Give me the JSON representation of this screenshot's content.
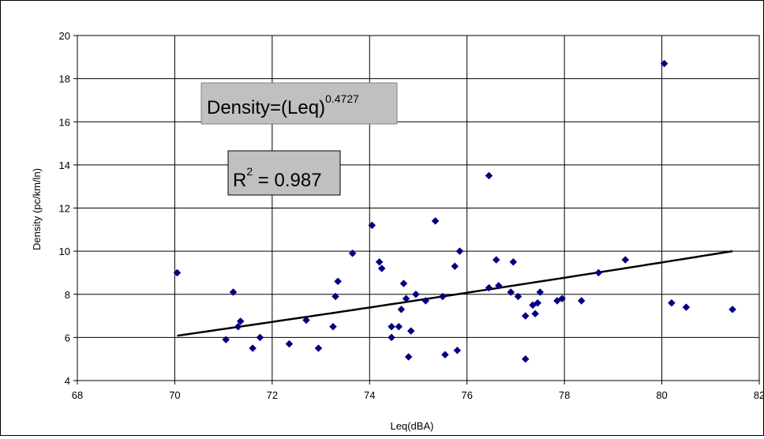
{
  "chart_data": {
    "type": "scatter",
    "xlabel": "Leq(dBA)",
    "ylabel": "Density (pc/km/ln)",
    "xlim": [
      68,
      82
    ],
    "ylim": [
      4,
      20
    ],
    "x_ticks": [
      "68",
      "70",
      "72",
      "74",
      "76",
      "78",
      "80",
      "82"
    ],
    "y_ticks": [
      "4",
      "6",
      "8",
      "10",
      "12",
      "14",
      "16",
      "18",
      "20"
    ],
    "grid": true,
    "marker_color": "#000080",
    "trend_color": "#000000",
    "series": [
      {
        "points": [
          [
            70.05,
            9.0
          ],
          [
            71.05,
            5.9
          ],
          [
            71.2,
            8.1
          ],
          [
            71.3,
            6.5
          ],
          [
            71.35,
            6.75
          ],
          [
            71.6,
            5.5
          ],
          [
            71.75,
            6.0
          ],
          [
            72.35,
            5.7
          ],
          [
            72.7,
            6.8
          ],
          [
            72.95,
            5.5
          ],
          [
            73.25,
            6.5
          ],
          [
            73.3,
            7.9
          ],
          [
            73.35,
            8.6
          ],
          [
            73.65,
            9.9
          ],
          [
            74.05,
            11.2
          ],
          [
            74.2,
            9.5
          ],
          [
            74.25,
            9.2
          ],
          [
            74.45,
            6.0
          ],
          [
            74.45,
            6.5
          ],
          [
            74.6,
            6.5
          ],
          [
            74.65,
            7.3
          ],
          [
            74.7,
            8.5
          ],
          [
            74.75,
            7.8
          ],
          [
            74.8,
            5.1
          ],
          [
            74.85,
            6.3
          ],
          [
            74.95,
            8.0
          ],
          [
            75.15,
            7.7
          ],
          [
            75.35,
            11.4
          ],
          [
            75.5,
            7.9
          ],
          [
            75.55,
            5.2
          ],
          [
            75.75,
            9.3
          ],
          [
            75.8,
            5.4
          ],
          [
            75.85,
            10.0
          ],
          [
            76.45,
            13.5
          ],
          [
            76.45,
            8.3
          ],
          [
            76.6,
            9.6
          ],
          [
            76.65,
            8.4
          ],
          [
            76.9,
            8.1
          ],
          [
            76.95,
            9.5
          ],
          [
            77.05,
            7.9
          ],
          [
            77.2,
            7.0
          ],
          [
            77.2,
            5.0
          ],
          [
            77.35,
            7.5
          ],
          [
            77.4,
            7.1
          ],
          [
            77.45,
            7.6
          ],
          [
            77.5,
            8.1
          ],
          [
            77.85,
            7.7
          ],
          [
            77.95,
            7.8
          ],
          [
            78.35,
            7.7
          ],
          [
            78.7,
            9.0
          ],
          [
            79.25,
            9.6
          ],
          [
            80.05,
            18.7
          ],
          [
            80.2,
            7.6
          ],
          [
            80.5,
            7.4
          ],
          [
            81.45,
            7.3
          ]
        ]
      }
    ],
    "trendline": {
      "exponent": 0.4727,
      "x_range": [
        70.05,
        81.45
      ]
    },
    "annotations": [
      {
        "id": "equation",
        "base": "Density=(Leq)",
        "superscript": "0.4727"
      },
      {
        "id": "r-squared",
        "base_pre": "R",
        "superscript": "2",
        "base_post": " = 0.987"
      }
    ]
  }
}
